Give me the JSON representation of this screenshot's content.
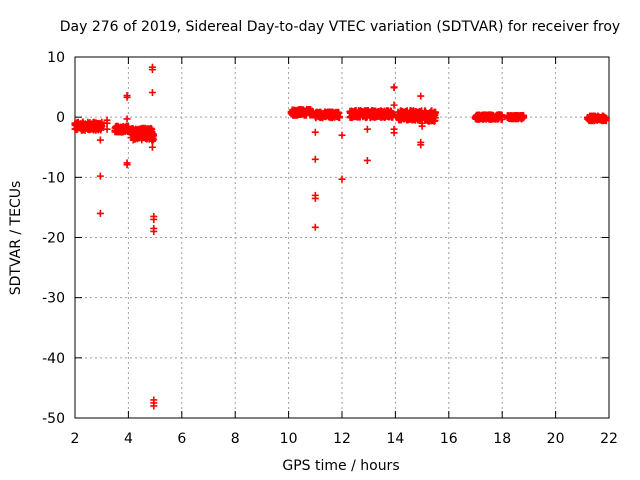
{
  "chart_data": {
    "type": "scatter",
    "title": "Day 276 of 2019, Sidereal Day-to-day VTEC variation (SDTVAR) for receiver froy",
    "xlabel": "GPS time / hours",
    "ylabel": "SDTVAR / TECUs",
    "xlim": [
      2,
      22
    ],
    "ylim": [
      -50,
      10
    ],
    "xticks": [
      2,
      4,
      6,
      8,
      10,
      12,
      14,
      16,
      18,
      20,
      22
    ],
    "yticks": [
      10,
      0,
      -10,
      -20,
      -30,
      -40,
      -50
    ],
    "grid": true,
    "marker": "+",
    "series_color": "#ff0000",
    "clusters": [
      {
        "x_start": 2.0,
        "x_end": 3.0,
        "y_center": -1.5,
        "spread": 0.7
      },
      {
        "x_start": 3.5,
        "x_end": 4.0,
        "y_center": -2.0,
        "spread": 0.5
      },
      {
        "x_start": 4.1,
        "x_end": 4.95,
        "y_center": -2.8,
        "spread": 1.0
      },
      {
        "x_start": 10.1,
        "x_end": 10.9,
        "y_center": 0.8,
        "spread": 0.5
      },
      {
        "x_start": 11.0,
        "x_end": 11.9,
        "y_center": 0.4,
        "spread": 0.5
      },
      {
        "x_start": 12.3,
        "x_end": 13.2,
        "y_center": 0.5,
        "spread": 0.6
      },
      {
        "x_start": 13.1,
        "x_end": 13.9,
        "y_center": 0.5,
        "spread": 0.6
      },
      {
        "x_start": 14.1,
        "x_end": 15.0,
        "y_center": 0.3,
        "spread": 0.8
      },
      {
        "x_start": 15.1,
        "x_end": 15.5,
        "y_center": 0.2,
        "spread": 0.9
      },
      {
        "x_start": 17.0,
        "x_end": 18.0,
        "y_center": 0.0,
        "spread": 0.4
      },
      {
        "x_start": 18.2,
        "x_end": 18.8,
        "y_center": 0.0,
        "spread": 0.3
      },
      {
        "x_start": 21.2,
        "x_end": 21.9,
        "y_center": -0.2,
        "spread": 0.4
      }
    ],
    "points": [
      [
        2.0,
        -1.0
      ],
      [
        2.0,
        -2.0
      ],
      [
        2.95,
        -3.8
      ],
      [
        2.95,
        -9.8
      ],
      [
        2.95,
        -16.0
      ],
      [
        3.2,
        -1.0
      ],
      [
        3.2,
        -2.0
      ],
      [
        3.2,
        -0.5
      ],
      [
        3.95,
        3.6
      ],
      [
        3.95,
        3.3
      ],
      [
        3.95,
        -0.3
      ],
      [
        3.95,
        -7.6
      ],
      [
        3.95,
        -7.9
      ],
      [
        4.9,
        8.3
      ],
      [
        4.9,
        7.9
      ],
      [
        4.9,
        4.1
      ],
      [
        4.9,
        -4.0
      ],
      [
        4.9,
        -5.0
      ],
      [
        4.95,
        -16.5
      ],
      [
        4.95,
        -17.0
      ],
      [
        4.95,
        -18.5
      ],
      [
        4.95,
        -19.0
      ],
      [
        4.95,
        -47.0
      ],
      [
        4.95,
        -47.5
      ],
      [
        4.95,
        -48.0
      ],
      [
        11.0,
        -2.5
      ],
      [
        11.0,
        -7.0
      ],
      [
        11.0,
        -13.0
      ],
      [
        11.0,
        -13.5
      ],
      [
        11.0,
        -18.3
      ],
      [
        12.0,
        -3.0
      ],
      [
        12.0,
        -10.3
      ],
      [
        12.95,
        -2.0
      ],
      [
        12.95,
        -7.2
      ],
      [
        13.95,
        5.0
      ],
      [
        13.95,
        4.9
      ],
      [
        13.95,
        2.0
      ],
      [
        13.95,
        -2.0
      ],
      [
        13.95,
        -2.6
      ],
      [
        14.95,
        3.5
      ],
      [
        14.95,
        -4.2
      ],
      [
        14.95,
        -4.6
      ],
      [
        15.0,
        -1.0
      ],
      [
        15.0,
        -1.5
      ]
    ]
  }
}
